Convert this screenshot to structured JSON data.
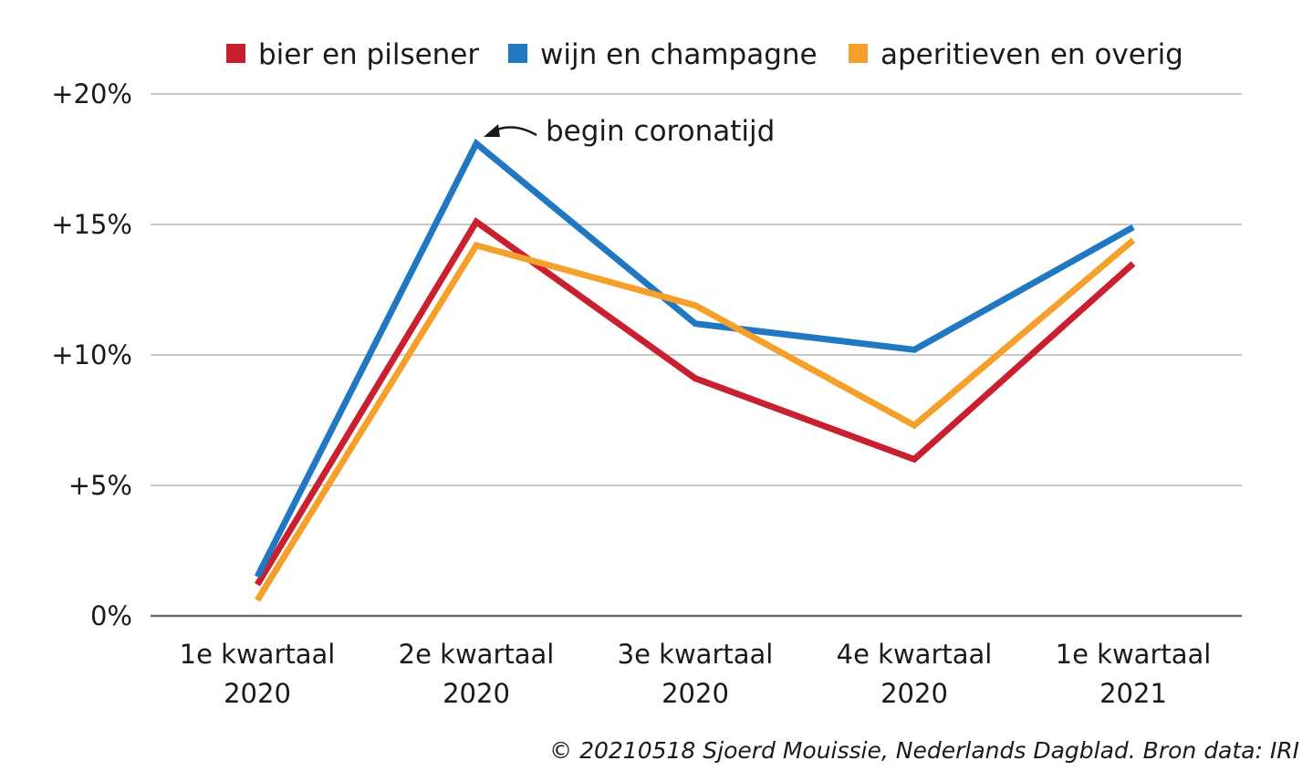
{
  "chart_data": {
    "type": "line",
    "title": "",
    "xlabel": "",
    "ylabel": "",
    "ylim": [
      0,
      20
    ],
    "y_ticks": [
      0,
      5,
      10,
      15,
      20
    ],
    "y_tick_labels": [
      "0%",
      "+5%",
      "+10%",
      "+15%",
      "+20%"
    ],
    "categories": [
      [
        "1e kwartaal",
        "2020"
      ],
      [
        "2e kwartaal",
        "2020"
      ],
      [
        "3e kwartaal",
        "2020"
      ],
      [
        "4e kwartaal",
        "2020"
      ],
      [
        "1e kwartaal",
        "2021"
      ]
    ],
    "series": [
      {
        "name": "bier en pilsener",
        "color": "#c8202f",
        "values": [
          1.2,
          15.1,
          9.1,
          6.0,
          13.5
        ]
      },
      {
        "name": "wijn en champagne",
        "color": "#1f78c1",
        "values": [
          1.5,
          18.1,
          11.2,
          10.2,
          14.9
        ]
      },
      {
        "name": "aperitieven en overig",
        "color": "#f5a02a",
        "values": [
          0.6,
          14.2,
          11.9,
          7.3,
          14.4
        ]
      }
    ],
    "legend_position": "top",
    "annotation": {
      "text": "begin coronatijd",
      "category_index": 1,
      "series": "wijn en champagne"
    },
    "grid": true
  },
  "credit": "© 20210518 Sjoerd Mouissie, Nederlands Dagblad. Bron data: IRI"
}
